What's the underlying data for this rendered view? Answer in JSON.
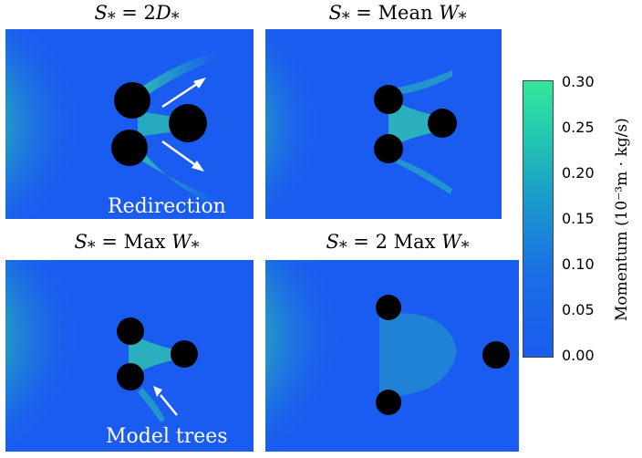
{
  "panels": [
    {
      "title_main": "S",
      "title_sub": "*",
      "title_rest": " = 2",
      "title_var": "D",
      "title_var_sub": "*"
    },
    {
      "title_main": "S",
      "title_sub": "*",
      "title_rest": " = Mean ",
      "title_var": "W",
      "title_var_sub": "*"
    },
    {
      "title_main": "S",
      "title_sub": "*",
      "title_rest": " = Max ",
      "title_var": "W",
      "title_var_sub": "*"
    },
    {
      "title_main": "S",
      "title_sub": "*",
      "title_rest": " = 2 Max ",
      "title_var": "W",
      "title_var_sub": "*"
    }
  ],
  "annotations": {
    "redirection": "Redirection",
    "model_trees": "Model trees"
  },
  "colorbar": {
    "label": "Momentum (10⁻³m · kg/s)",
    "ticks": [
      "0.30",
      "0.25",
      "0.20",
      "0.15",
      "0.10",
      "0.05",
      "0.00"
    ],
    "colors": {
      "low": "#1a5cf0",
      "mid": "#1aa0c8",
      "high": "#33e89a"
    }
  }
}
